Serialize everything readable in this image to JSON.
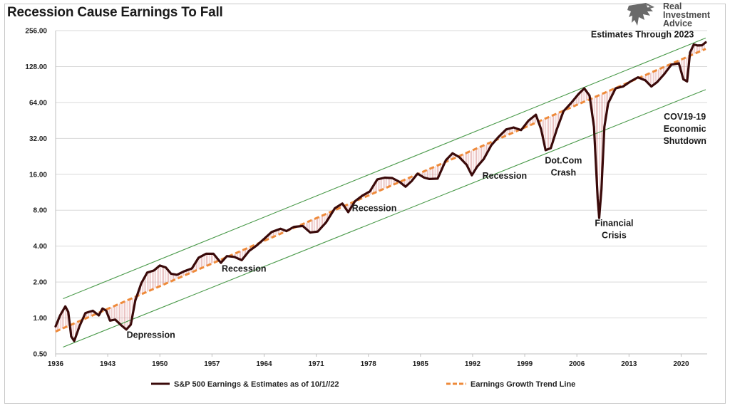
{
  "logo": {
    "line1": "Real",
    "line2": "Investment",
    "line3": "Advice"
  },
  "colors": {
    "earnings": "#3a0a0a",
    "trend": "#ee8a3a",
    "channel": "#4a9a4a",
    "fill": "#d88a8a",
    "grid": "#d9d9d9"
  },
  "chart_data": {
    "type": "line",
    "title": "Recession Cause Earnings To Fall",
    "y_scale": "log2",
    "ylim": [
      0.5,
      256
    ],
    "xlim": [
      1936,
      2023.5
    ],
    "y_ticks": [
      "0.50",
      "1.00",
      "2.00",
      "4.00",
      "8.00",
      "16.00",
      "32.00",
      "64.00",
      "128.00",
      "256.00"
    ],
    "x_ticks": [
      "1936",
      "1943",
      "1950",
      "1957",
      "1964",
      "1971",
      "1978",
      "1985",
      "1992",
      "1999",
      "2006",
      "2013",
      "2020"
    ],
    "grid": true,
    "legend_position": "bottom",
    "series": [
      {
        "name": "S&P 500 Earnings & Estimates as of 10/1//22",
        "style": "solid",
        "points": [
          [
            1936.0,
            0.85
          ],
          [
            1936.6,
            1.05
          ],
          [
            1937.3,
            1.25
          ],
          [
            1937.7,
            1.12
          ],
          [
            1938.1,
            0.7
          ],
          [
            1938.5,
            0.64
          ],
          [
            1939.2,
            0.85
          ],
          [
            1940.0,
            1.1
          ],
          [
            1941.0,
            1.15
          ],
          [
            1941.8,
            1.05
          ],
          [
            1942.3,
            1.2
          ],
          [
            1942.8,
            1.15
          ],
          [
            1943.3,
            0.95
          ],
          [
            1944.0,
            0.97
          ],
          [
            1944.8,
            0.87
          ],
          [
            1945.5,
            0.8
          ],
          [
            1946.1,
            0.88
          ],
          [
            1946.7,
            1.4
          ],
          [
            1947.5,
            1.95
          ],
          [
            1948.3,
            2.4
          ],
          [
            1949.2,
            2.5
          ],
          [
            1950.0,
            2.75
          ],
          [
            1950.8,
            2.65
          ],
          [
            1951.5,
            2.35
          ],
          [
            1952.3,
            2.3
          ],
          [
            1953.2,
            2.45
          ],
          [
            1954.3,
            2.6
          ],
          [
            1955.2,
            3.2
          ],
          [
            1956.2,
            3.45
          ],
          [
            1957.2,
            3.45
          ],
          [
            1958.2,
            2.9
          ],
          [
            1959.0,
            3.3
          ],
          [
            1960.0,
            3.25
          ],
          [
            1961.0,
            3.05
          ],
          [
            1962.0,
            3.65
          ],
          [
            1963.0,
            4.05
          ],
          [
            1964.0,
            4.6
          ],
          [
            1965.0,
            5.25
          ],
          [
            1966.2,
            5.6
          ],
          [
            1967.0,
            5.35
          ],
          [
            1968.0,
            5.8
          ],
          [
            1969.2,
            5.9
          ],
          [
            1970.2,
            5.2
          ],
          [
            1971.2,
            5.3
          ],
          [
            1972.3,
            6.3
          ],
          [
            1973.5,
            8.3
          ],
          [
            1974.5,
            9.1
          ],
          [
            1975.3,
            7.7
          ],
          [
            1976.2,
            9.5
          ],
          [
            1977.2,
            10.6
          ],
          [
            1978.2,
            11.5
          ],
          [
            1979.2,
            14.5
          ],
          [
            1980.2,
            15.0
          ],
          [
            1981.2,
            14.9
          ],
          [
            1982.2,
            13.8
          ],
          [
            1983.0,
            12.6
          ],
          [
            1983.8,
            14.0
          ],
          [
            1984.6,
            16.2
          ],
          [
            1985.5,
            15.0
          ],
          [
            1986.2,
            14.6
          ],
          [
            1987.3,
            14.7
          ],
          [
            1988.4,
            21.0
          ],
          [
            1989.3,
            24.0
          ],
          [
            1990.2,
            22.3
          ],
          [
            1991.2,
            19.2
          ],
          [
            1991.9,
            15.7
          ],
          [
            1992.6,
            18.5
          ],
          [
            1993.5,
            21.5
          ],
          [
            1994.5,
            28.0
          ],
          [
            1995.5,
            33.0
          ],
          [
            1996.5,
            38.0
          ],
          [
            1997.5,
            39.5
          ],
          [
            1998.5,
            37.5
          ],
          [
            1999.5,
            45.0
          ],
          [
            2000.5,
            50.5
          ],
          [
            2001.2,
            38.0
          ],
          [
            2001.8,
            25.5
          ],
          [
            2002.5,
            26.5
          ],
          [
            2003.3,
            38.0
          ],
          [
            2004.2,
            54.0
          ],
          [
            2005.2,
            63.0
          ],
          [
            2006.2,
            75.0
          ],
          [
            2007.0,
            84.0
          ],
          [
            2007.7,
            73.0
          ],
          [
            2008.3,
            40.0
          ],
          [
            2008.8,
            10.0
          ],
          [
            2009.0,
            6.9
          ],
          [
            2009.3,
            12.0
          ],
          [
            2009.7,
            40.0
          ],
          [
            2010.2,
            63.0
          ],
          [
            2011.2,
            84.0
          ],
          [
            2012.2,
            87.0
          ],
          [
            2013.2,
            96.0
          ],
          [
            2014.2,
            104.0
          ],
          [
            2015.2,
            98.0
          ],
          [
            2016.0,
            87.0
          ],
          [
            2016.8,
            95.0
          ],
          [
            2017.7,
            110.0
          ],
          [
            2018.7,
            133.0
          ],
          [
            2019.7,
            136.0
          ],
          [
            2020.3,
            100.0
          ],
          [
            2020.8,
            96.0
          ],
          [
            2021.2,
            168.0
          ],
          [
            2021.7,
            196.0
          ],
          [
            2022.2,
            192.0
          ],
          [
            2022.8,
            193.0
          ],
          [
            2023.3,
            204.0
          ]
        ]
      },
      {
        "name": "Earnings Growth Trend Line",
        "style": "dashed",
        "points": [
          [
            1936.0,
            0.77
          ],
          [
            2023.3,
            180.0
          ]
        ]
      }
    ],
    "channel_lines": [
      {
        "points": [
          [
            1937.0,
            1.45
          ],
          [
            2023.3,
            222.0
          ]
        ]
      },
      {
        "points": [
          [
            1937.0,
            0.57
          ],
          [
            2023.3,
            82.0
          ]
        ]
      }
    ],
    "annotations": [
      {
        "text": "Depression",
        "x": 1948.8,
        "y": 0.68,
        "align": "middle"
      },
      {
        "text": "Recession",
        "x": 1961.3,
        "y": 2.45,
        "align": "middle"
      },
      {
        "text": "Recession",
        "x": 1978.8,
        "y": 7.85,
        "align": "middle"
      },
      {
        "text": "Recession",
        "x": 1996.3,
        "y": 14.7,
        "align": "middle"
      },
      {
        "text": [
          "Dot.Com",
          "Crash"
        ],
        "x": 2004.2,
        "y": 19.8,
        "align": "middle"
      },
      {
        "text": [
          "Financial",
          "Crisis"
        ],
        "x": 2011.0,
        "y": 5.9,
        "align": "middle"
      },
      {
        "text": [
          "COV19-19",
          "Economic",
          "Shutdown"
        ],
        "x": 2020.5,
        "y": 46.0,
        "align": "middle"
      },
      {
        "text": "Estimates Through 2023",
        "x": 2014.8,
        "y": 225.0,
        "align": "middle"
      }
    ]
  }
}
